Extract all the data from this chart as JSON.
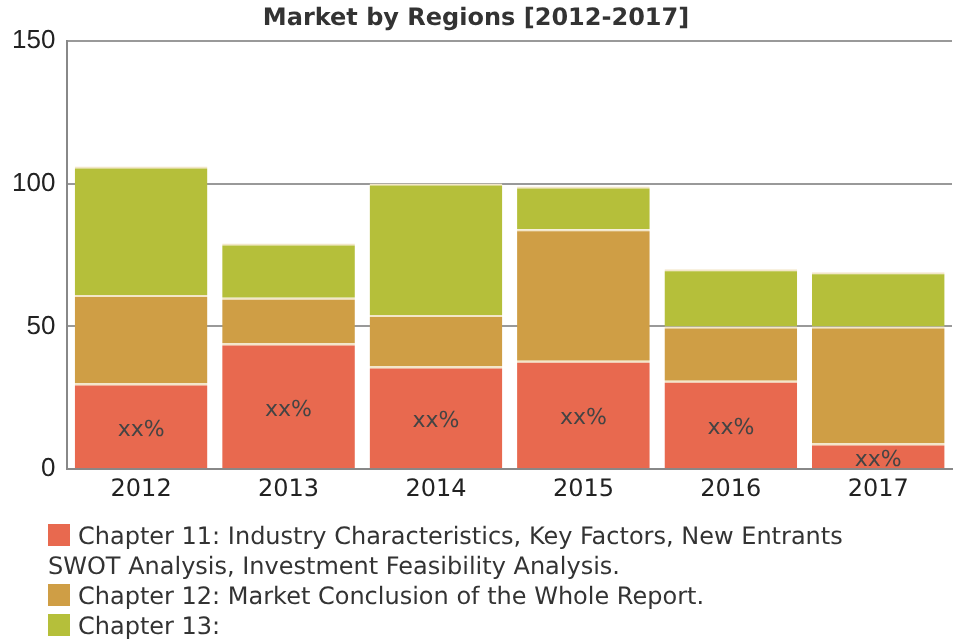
{
  "chart_data": {
    "type": "bar",
    "title": "Market by Regions [2012-2017]",
    "stacked": true,
    "categories": [
      "2012",
      "2013",
      "2014",
      "2015",
      "2016",
      "2017"
    ],
    "series": [
      {
        "name": "Chapter 11: Industry Characteristics, Key Factors, New Entrants SWOT Analysis, Investment Feasibility Analysis.",
        "color": "#e8694f",
        "values": [
          30,
          44,
          36,
          38,
          31,
          9
        ],
        "value_labels": [
          "xx%",
          "xx%",
          "xx%",
          "xx%",
          "xx%",
          "xx%"
        ]
      },
      {
        "name": "Chapter 12: Market Conclusion of the Whole Report.",
        "color": "#cf9e45",
        "values": [
          31,
          16,
          18,
          46,
          19,
          41
        ]
      },
      {
        "name": "Chapter 13:",
        "color": "#b5bf3a",
        "values": [
          45,
          19,
          46,
          15,
          20,
          19
        ]
      }
    ],
    "ylim": [
      0,
      150
    ],
    "yticks": [
      0,
      50,
      100,
      150
    ],
    "grid": "y",
    "legend": "bottom"
  }
}
